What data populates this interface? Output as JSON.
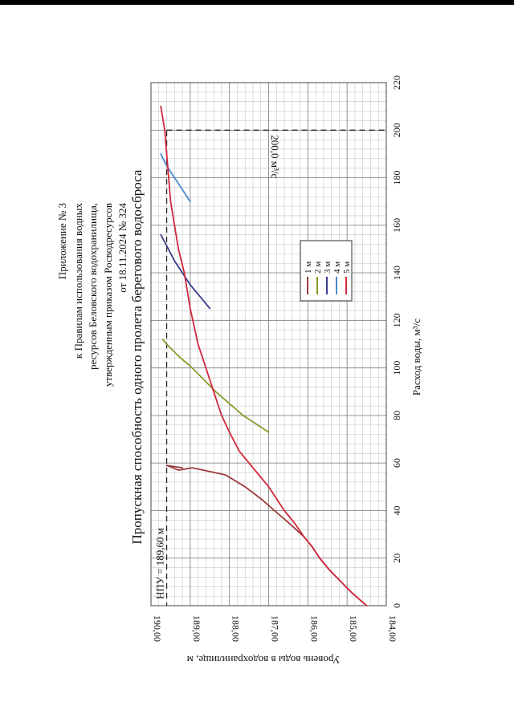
{
  "header": {
    "lines": [
      "Приложение № 3",
      "к    Правилам    использования    водных",
      "ресурсов   Беловского   водохранилища,",
      "утвержденным приказом Росводресурсов",
      "от 18.11.2024 № 324"
    ]
  },
  "chart_data": {
    "type": "line",
    "title": "Пропускная способность одного пролета берегового водосброса",
    "xlabel": "Расход воды, м³/с",
    "ylabel": "Уровень воды в водохранилище, м",
    "xlim": [
      0,
      220
    ],
    "ylim": [
      184.0,
      190.0
    ],
    "xticks": [
      "0",
      "20",
      "40",
      "60",
      "80",
      "100",
      "120",
      "140",
      "160",
      "180",
      "200",
      "220"
    ],
    "yticks": [
      "184,00",
      "185,00",
      "186,00",
      "187,00",
      "188,00",
      "189,00",
      "190,00"
    ],
    "grid": true,
    "legend_placement": "right",
    "series": [
      {
        "name": "1 м",
        "color": "#9b3b3b",
        "points": [
          [
            0,
            184.5
          ],
          [
            5,
            184.85
          ],
          [
            10,
            185.15
          ],
          [
            15,
            185.45
          ],
          [
            20,
            185.7
          ],
          [
            25,
            185.9
          ],
          [
            29,
            186.1
          ],
          [
            35,
            186.5
          ],
          [
            40,
            186.85
          ],
          [
            45,
            187.2
          ],
          [
            50,
            187.6
          ],
          [
            55,
            188.1
          ],
          [
            58,
            188.95
          ],
          [
            57,
            189.3
          ],
          [
            59,
            189.6
          ],
          [
            58,
            189.2
          ]
        ]
      },
      {
        "name": "2 м",
        "color": "#8a9a2a",
        "points": [
          [
            73,
            187.0
          ],
          [
            80,
            187.65
          ],
          [
            90,
            188.35
          ],
          [
            100,
            188.95
          ],
          [
            105,
            189.3
          ],
          [
            110,
            189.6
          ],
          [
            112,
            189.7
          ]
        ]
      },
      {
        "name": "3 м",
        "color": "#3b3b8f",
        "points": [
          [
            125,
            188.5
          ],
          [
            135,
            189.0
          ],
          [
            145,
            189.4
          ],
          [
            152,
            189.62
          ],
          [
            156,
            189.75
          ]
        ]
      },
      {
        "name": "4 м",
        "color": "#4a8ad0",
        "points": [
          [
            170,
            189.0
          ],
          [
            175,
            189.2
          ],
          [
            180,
            189.4
          ],
          [
            185,
            189.6
          ],
          [
            190,
            189.75
          ]
        ]
      },
      {
        "name": "5 м",
        "color": "#d0283c",
        "points": [
          [
            0,
            184.5
          ],
          [
            5,
            184.85
          ],
          [
            10,
            185.15
          ],
          [
            15,
            185.45
          ],
          [
            20,
            185.7
          ],
          [
            25,
            185.9
          ],
          [
            29,
            186.1
          ],
          [
            35,
            186.35
          ],
          [
            40,
            186.6
          ],
          [
            45,
            186.8
          ],
          [
            50,
            187.0
          ],
          [
            55,
            187.25
          ],
          [
            60,
            187.5
          ],
          [
            65,
            187.75
          ],
          [
            73,
            188.0
          ],
          [
            80,
            188.2
          ],
          [
            90,
            188.4
          ],
          [
            100,
            188.6
          ],
          [
            110,
            188.8
          ],
          [
            125,
            189.0
          ],
          [
            140,
            189.15
          ],
          [
            150,
            189.3
          ],
          [
            160,
            189.4
          ],
          [
            170,
            189.5
          ],
          [
            180,
            189.55
          ],
          [
            190,
            189.6
          ],
          [
            200,
            189.65
          ],
          [
            205,
            189.7
          ],
          [
            210,
            189.75
          ]
        ]
      }
    ],
    "annotations": [
      {
        "text": "НПУ = 189,60 м",
        "y": 189.6
      },
      {
        "text": "200,0 м³/с",
        "x": 200.0
      }
    ]
  }
}
